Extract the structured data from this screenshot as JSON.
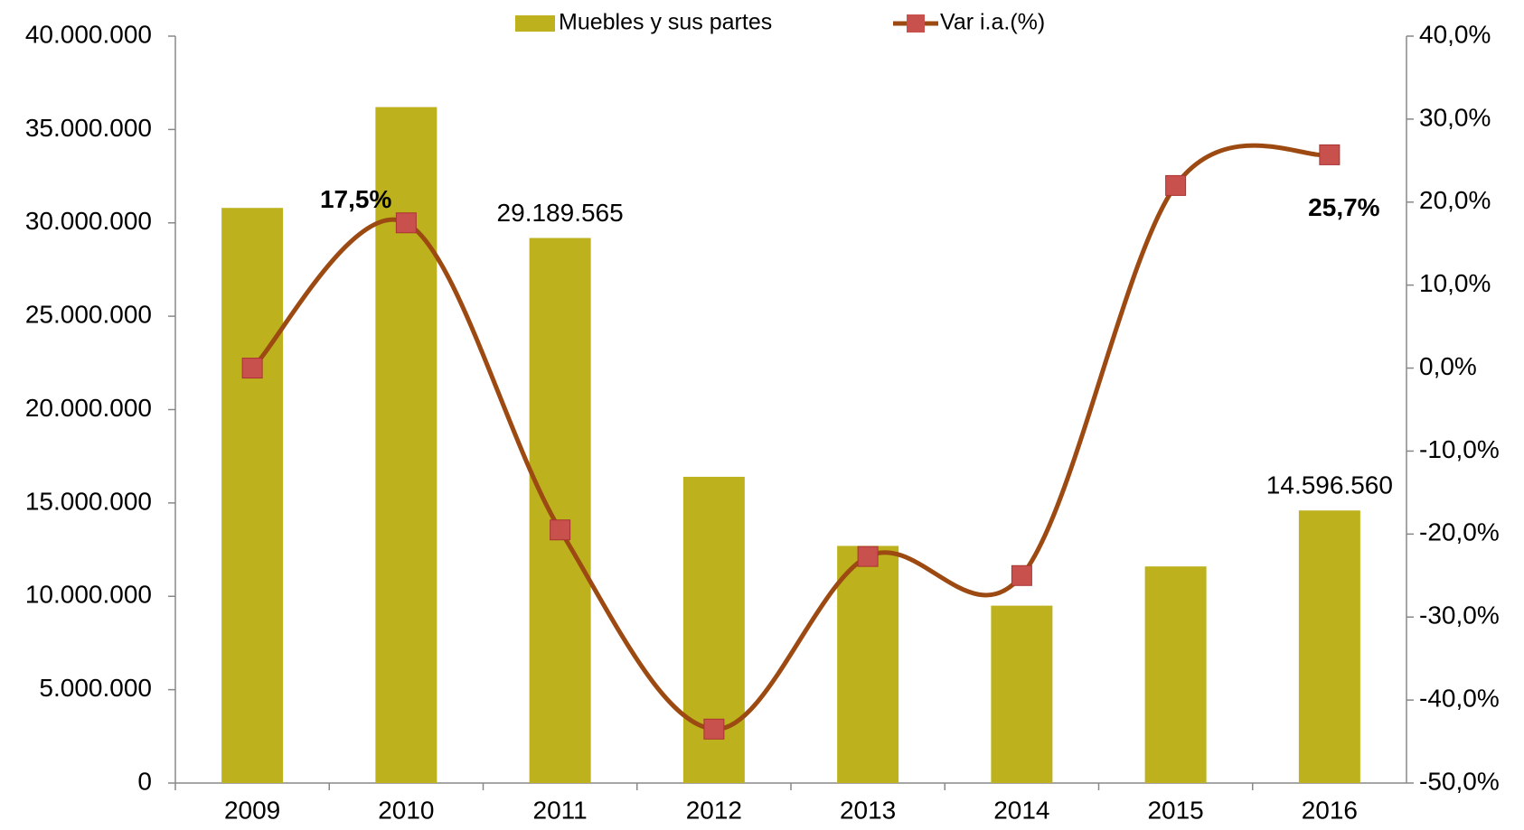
{
  "chart_data": {
    "type": "bar_line",
    "categories": [
      "2009",
      "2010",
      "2011",
      "2012",
      "2013",
      "2014",
      "2015",
      "2016"
    ],
    "series": [
      {
        "name": "Muebles y sus partes",
        "type": "bar",
        "color": "#bdb21e",
        "values": [
          30800000,
          36200000,
          29189565,
          16400000,
          12700000,
          9500000,
          11600000,
          14596560
        ],
        "value_labels": [
          null,
          null,
          "29.189.565",
          null,
          null,
          null,
          null,
          "14.596.560"
        ]
      },
      {
        "name": "Var i.a.(%)",
        "type": "line",
        "axis": "y2",
        "color": "#9c4a12",
        "marker_color": "#c8514e",
        "values": [
          0.0,
          17.5,
          -19.5,
          -43.5,
          -22.7,
          -25.0,
          22.0,
          25.7
        ],
        "value_labels": [
          null,
          "17,5%",
          null,
          null,
          null,
          null,
          null,
          "25,7%"
        ]
      }
    ],
    "ylim": [
      0,
      40000000
    ],
    "yticks": [
      0,
      {
        "value": 5000000,
        "label": "5.000.000"
      },
      {
        "value": 10000000,
        "label": "10.000.000"
      },
      {
        "value": 15000000,
        "label": "15.000.000"
      },
      {
        "value": 20000000,
        "label": "20.000.000"
      },
      {
        "value": 25000000,
        "label": "25.000.000"
      },
      {
        "value": 30000000,
        "label": "30.000.000"
      },
      {
        "value": 35000000,
        "label": "35.000.000"
      },
      {
        "value": 40000000,
        "label": "40.000.000"
      }
    ],
    "y2lim": [
      -50,
      40
    ],
    "y2ticks": [
      {
        "value": -50,
        "label": "-50,0%"
      },
      {
        "value": -40,
        "label": "-40,0%"
      },
      {
        "value": -30,
        "label": "-30,0%"
      },
      {
        "value": -20,
        "label": "-20,0%"
      },
      {
        "value": -10,
        "label": "-10,0%"
      },
      {
        "value": 0,
        "label": "0,0%"
      },
      {
        "value": 10,
        "label": "10,0%"
      },
      {
        "value": 20,
        "label": "20,0%"
      },
      {
        "value": 30,
        "label": "30,0%"
      },
      {
        "value": 40,
        "label": "40,0%"
      }
    ],
    "legend": "top",
    "grid": false
  }
}
